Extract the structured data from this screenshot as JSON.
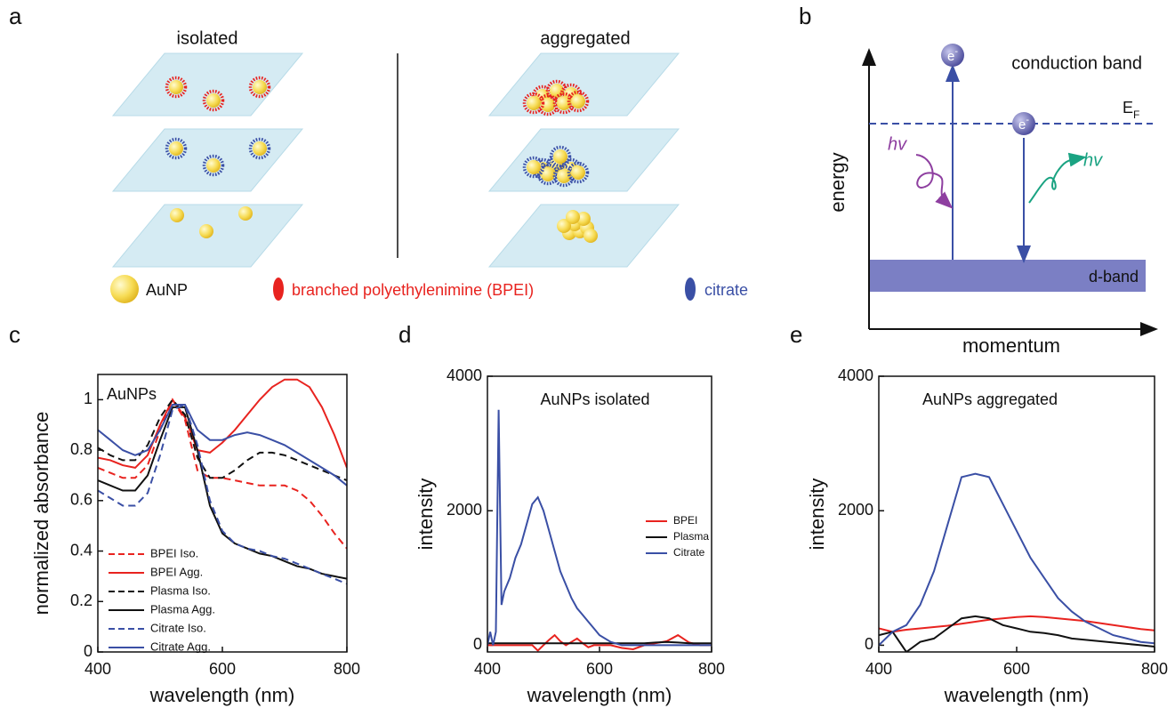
{
  "panel_a": {
    "label": "a",
    "left_heading": "isolated",
    "right_heading": "aggregated",
    "legend": {
      "aunp": "AuNP",
      "bpei": "branched polyethylenimine  (BPEI)",
      "citrate": "citrate"
    }
  },
  "panel_b": {
    "label": "b",
    "conduction_band": "conduction band",
    "fermi_main": "E",
    "fermi_sub": "F",
    "electron": "e",
    "electron_charge": "-",
    "absorbed": "hv",
    "emitted": "hv",
    "d_band": "d-band",
    "y_label": "energy",
    "x_label": "momentum"
  },
  "chart_data": [
    {
      "type": "line",
      "label": "c",
      "title": "AuNPs",
      "x_label": "wavelength (nm)",
      "y_label": "normalized absorbance",
      "xlim": [
        400,
        800
      ],
      "xticks": [
        400,
        600,
        800
      ],
      "ylim": [
        0,
        1.1
      ],
      "yticks": [
        0,
        0.2,
        0.4,
        0.6,
        0.8,
        1
      ],
      "legend": "lower left",
      "x": [
        400,
        420,
        440,
        460,
        480,
        500,
        520,
        540,
        560,
        580,
        600,
        620,
        640,
        660,
        680,
        700,
        720,
        740,
        760,
        780,
        800
      ],
      "series": [
        {
          "name": "BPEI Iso.",
          "color": "#e8231f",
          "style": "dashed",
          "values": [
            0.73,
            0.71,
            0.69,
            0.69,
            0.74,
            0.88,
            1.0,
            0.92,
            0.72,
            0.69,
            0.69,
            0.68,
            0.67,
            0.66,
            0.66,
            0.66,
            0.64,
            0.6,
            0.54,
            0.47,
            0.41
          ]
        },
        {
          "name": "BPEI Agg.",
          "color": "#e8231f",
          "style": "solid",
          "values": [
            0.77,
            0.76,
            0.74,
            0.73,
            0.78,
            0.9,
            1.0,
            0.93,
            0.8,
            0.79,
            0.83,
            0.88,
            0.94,
            1.0,
            1.05,
            1.08,
            1.08,
            1.05,
            0.97,
            0.86,
            0.73
          ]
        },
        {
          "name": "Plasma Iso.",
          "color": "#111111",
          "style": "dashed",
          "values": [
            0.81,
            0.78,
            0.76,
            0.76,
            0.82,
            0.93,
            1.0,
            0.94,
            0.77,
            0.69,
            0.69,
            0.72,
            0.76,
            0.79,
            0.79,
            0.78,
            0.76,
            0.74,
            0.72,
            0.7,
            0.68
          ]
        },
        {
          "name": "Plasma Agg.",
          "color": "#111111",
          "style": "solid",
          "values": [
            0.68,
            0.66,
            0.64,
            0.64,
            0.7,
            0.84,
            0.97,
            0.97,
            0.8,
            0.58,
            0.47,
            0.43,
            0.41,
            0.39,
            0.38,
            0.36,
            0.34,
            0.33,
            0.31,
            0.3,
            0.29
          ]
        },
        {
          "name": "Citrate Iso.",
          "color": "#3a4fa5",
          "style": "dashed",
          "values": [
            0.64,
            0.61,
            0.58,
            0.58,
            0.63,
            0.78,
            0.96,
            0.98,
            0.82,
            0.6,
            0.48,
            0.43,
            0.41,
            0.4,
            0.38,
            0.37,
            0.35,
            0.33,
            0.31,
            0.29,
            0.27
          ]
        },
        {
          "name": "Citrate Agg.",
          "color": "#3a4fa5",
          "style": "solid",
          "values": [
            0.88,
            0.84,
            0.8,
            0.78,
            0.8,
            0.88,
            0.98,
            0.98,
            0.88,
            0.84,
            0.84,
            0.86,
            0.87,
            0.86,
            0.84,
            0.82,
            0.79,
            0.76,
            0.73,
            0.7,
            0.66
          ]
        }
      ]
    },
    {
      "type": "line",
      "label": "d",
      "title": "AuNPs isolated",
      "x_label": "wavelength (nm)",
      "y_label": "intensity",
      "xlim": [
        400,
        800
      ],
      "xticks": [
        400,
        600,
        800
      ],
      "ylim": [
        -100,
        4000
      ],
      "yticks": [
        0,
        2000,
        4000
      ],
      "legend": "center right",
      "x": [
        400,
        405,
        410,
        415,
        420,
        425,
        430,
        440,
        450,
        460,
        470,
        480,
        490,
        500,
        510,
        520,
        530,
        540,
        550,
        560,
        570,
        580,
        590,
        600,
        620,
        640,
        660,
        680,
        700,
        720,
        740,
        760,
        780,
        800
      ],
      "series": [
        {
          "name": "BPEI",
          "color": "#e8231f",
          "style": "solid",
          "values": [
            0,
            0,
            0,
            0,
            0,
            0,
            0,
            0,
            0,
            0,
            0,
            0,
            -80,
            0,
            80,
            150,
            60,
            0,
            50,
            100,
            30,
            -30,
            0,
            0,
            0,
            -40,
            -60,
            0,
            30,
            60,
            150,
            40,
            0,
            0
          ]
        },
        {
          "name": "Plasma",
          "color": "#111111",
          "style": "solid",
          "values": [
            30,
            30,
            30,
            30,
            30,
            30,
            30,
            30,
            30,
            30,
            30,
            30,
            30,
            30,
            30,
            30,
            30,
            30,
            30,
            30,
            30,
            30,
            30,
            30,
            30,
            30,
            30,
            30,
            40,
            50,
            40,
            30,
            30,
            30
          ]
        },
        {
          "name": "Citrate",
          "color": "#3a4fa5",
          "style": "solid",
          "values": [
            0,
            200,
            0,
            200,
            3500,
            600,
            800,
            1000,
            1300,
            1500,
            1800,
            2100,
            2200,
            2000,
            1700,
            1400,
            1100,
            900,
            700,
            550,
            450,
            350,
            250,
            150,
            50,
            0,
            0,
            0,
            0,
            0,
            0,
            0,
            0,
            0
          ]
        }
      ]
    },
    {
      "type": "line",
      "label": "e",
      "title": "AuNPs aggregated",
      "x_label": "wavelength (nm)",
      "y_label": "intensity",
      "xlim": [
        400,
        800
      ],
      "xticks": [
        400,
        600,
        800
      ],
      "ylim": [
        -100,
        4000
      ],
      "yticks": [
        0,
        2000,
        4000
      ],
      "x": [
        400,
        420,
        440,
        460,
        480,
        500,
        520,
        540,
        560,
        580,
        600,
        620,
        640,
        660,
        680,
        700,
        720,
        740,
        760,
        780,
        800
      ],
      "series": [
        {
          "name": "BPEI",
          "color": "#e8231f",
          "style": "solid",
          "values": [
            250,
            200,
            230,
            250,
            270,
            290,
            320,
            350,
            380,
            400,
            420,
            430,
            420,
            400,
            380,
            360,
            330,
            300,
            270,
            240,
            220
          ]
        },
        {
          "name": "Plasma",
          "color": "#111111",
          "style": "solid",
          "values": [
            150,
            200,
            -100,
            50,
            100,
            250,
            400,
            430,
            400,
            300,
            250,
            200,
            180,
            150,
            100,
            80,
            60,
            40,
            20,
            0,
            -20
          ]
        },
        {
          "name": "Citrate",
          "color": "#3a4fa5",
          "style": "solid",
          "values": [
            0,
            200,
            300,
            600,
            1100,
            1800,
            2500,
            2550,
            2500,
            2100,
            1700,
            1300,
            1000,
            700,
            500,
            350,
            250,
            150,
            100,
            50,
            30
          ]
        }
      ]
    }
  ]
}
